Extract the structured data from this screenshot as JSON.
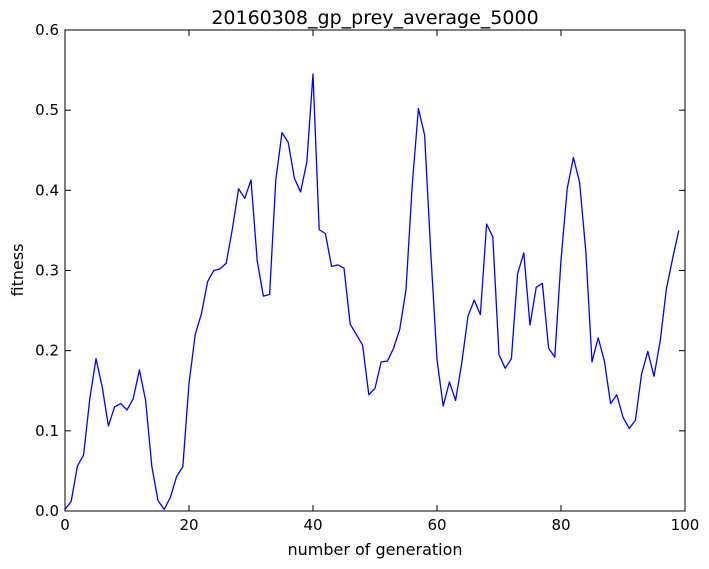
{
  "chart_data": {
    "type": "line",
    "title": "20160308_gp_prey_average_5000",
    "xlabel": "number of generation",
    "ylabel": "fitness",
    "xlim": [
      0,
      100
    ],
    "ylim": [
      0,
      0.6
    ],
    "xticks": [
      0,
      20,
      40,
      60,
      80,
      100
    ],
    "xtick_labels": [
      "0",
      "20",
      "40",
      "60",
      "80",
      "100"
    ],
    "yticks": [
      0,
      0.1,
      0.2,
      0.3,
      0.4,
      0.5,
      0.6
    ],
    "ytick_labels": [
      "0.0",
      "0.1",
      "0.2",
      "0.3",
      "0.4",
      "0.5",
      "0.6"
    ],
    "grid": false,
    "series_color": "#0000ff",
    "x": [
      0,
      1,
      2,
      3,
      4,
      5,
      6,
      7,
      8,
      9,
      10,
      11,
      12,
      13,
      14,
      15,
      16,
      17,
      18,
      19,
      20,
      21,
      22,
      23,
      24,
      25,
      26,
      27,
      28,
      29,
      30,
      31,
      32,
      33,
      34,
      35,
      36,
      37,
      38,
      39,
      40,
      41,
      42,
      43,
      44,
      45,
      46,
      47,
      48,
      49,
      50,
      51,
      52,
      53,
      54,
      55,
      56,
      57,
      58,
      59,
      60,
      61,
      62,
      63,
      64,
      65,
      66,
      67,
      68,
      69,
      70,
      71,
      72,
      73,
      74,
      75,
      76,
      77,
      78,
      79,
      80,
      81,
      82,
      83,
      84,
      85,
      86,
      87,
      88,
      89,
      90,
      91,
      92,
      93,
      94,
      95,
      96,
      97,
      98,
      99
    ],
    "values": [
      0.002,
      0.012,
      0.056,
      0.07,
      0.14,
      0.19,
      0.155,
      0.106,
      0.13,
      0.134,
      0.126,
      0.14,
      0.176,
      0.138,
      0.056,
      0.013,
      0.002,
      0.017,
      0.043,
      0.055,
      0.159,
      0.22,
      0.246,
      0.286,
      0.3,
      0.302,
      0.309,
      0.352,
      0.402,
      0.39,
      0.413,
      0.312,
      0.268,
      0.27,
      0.413,
      0.472,
      0.46,
      0.415,
      0.398,
      0.435,
      0.545,
      0.351,
      0.346,
      0.305,
      0.307,
      0.303,
      0.233,
      0.22,
      0.207,
      0.145,
      0.153,
      0.186,
      0.187,
      0.203,
      0.227,
      0.276,
      0.406,
      0.502,
      0.469,
      0.322,
      0.189,
      0.131,
      0.161,
      0.138,
      0.185,
      0.243,
      0.263,
      0.245,
      0.358,
      0.342,
      0.195,
      0.178,
      0.19,
      0.296,
      0.322,
      0.232,
      0.279,
      0.284,
      0.203,
      0.192,
      0.313,
      0.402,
      0.441,
      0.41,
      0.324,
      0.186,
      0.216,
      0.187,
      0.134,
      0.145,
      0.117,
      0.103,
      0.113,
      0.171,
      0.199,
      0.168,
      0.212,
      0.277,
      0.315,
      0.35
    ]
  }
}
